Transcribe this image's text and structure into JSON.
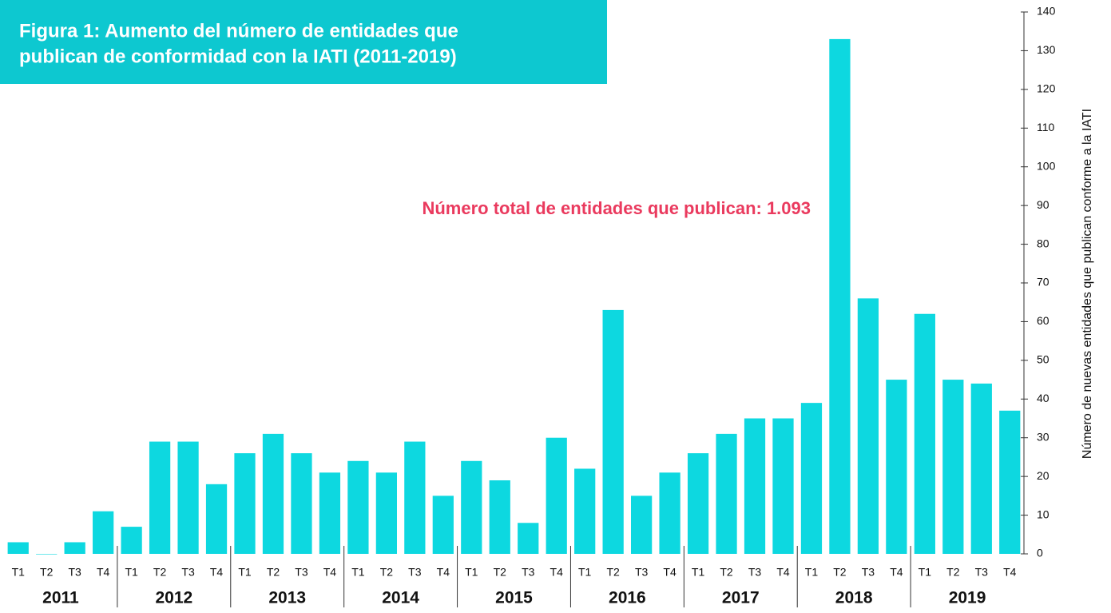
{
  "chart_data": {
    "type": "bar",
    "title": [
      "Figura 1: Aumento del número de entidades que",
      "publican de conformidad con la IATI (2011-2019)"
    ],
    "annotation": "Número total de entidades que publican: 1.093",
    "y_label": "Número de nuevas entidades que publican conforme a la IATI",
    "categories": [
      "T1",
      "T2",
      "T3",
      "T4",
      "T1",
      "T2",
      "T3",
      "T4",
      "T1",
      "T2",
      "T3",
      "T4",
      "T1",
      "T2",
      "T3",
      "T4",
      "T1",
      "T2",
      "T3",
      "T4",
      "T1",
      "T2",
      "T3",
      "T4",
      "T1",
      "T2",
      "T3",
      "T4",
      "T1",
      "T2",
      "T3",
      "T4",
      "T1",
      "T2",
      "T3",
      "T4"
    ],
    "groups": [
      "2011",
      "2012",
      "2013",
      "2014",
      "2015",
      "2016",
      "2017",
      "2018",
      "2019"
    ],
    "values": [
      3,
      0,
      3,
      11,
      7,
      29,
      29,
      18,
      26,
      31,
      26,
      21,
      24,
      21,
      29,
      15,
      24,
      19,
      8,
      30,
      22,
      63,
      15,
      21,
      26,
      31,
      35,
      35,
      39,
      133,
      66,
      45,
      62,
      45,
      44,
      37
    ],
    "color": "#0dd8e0",
    "ylim": [
      0,
      140
    ],
    "yticks": [
      0,
      10,
      20,
      30,
      40,
      50,
      60,
      70,
      80,
      90,
      100,
      110,
      120,
      130,
      140
    ],
    "y_axis_side": "right"
  }
}
